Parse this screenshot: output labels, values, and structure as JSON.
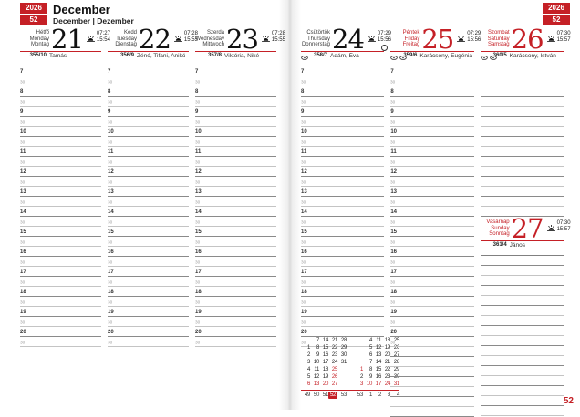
{
  "colors": {
    "red": "#c52026"
  },
  "corner_badge": {
    "year": "2026",
    "week": "52"
  },
  "month_header": {
    "title": "December",
    "subtitle": "December | Dezember"
  },
  "page_number": "52",
  "half_hour_label": "30",
  "hours": [
    "7",
    "8",
    "9",
    "10",
    "11",
    "12",
    "13",
    "14",
    "15",
    "16",
    "17",
    "18",
    "19",
    "20"
  ],
  "days": [
    {
      "name_hu": "Hétfő",
      "name_en": "Monday",
      "name_de": "Montag",
      "number": "21",
      "sunrise": "07:27",
      "sunset": "15:54",
      "ordinal": "355/10",
      "name_days": "Tamás",
      "is_red": false,
      "holiday_icons": 0,
      "full_moon": false
    },
    {
      "name_hu": "Kedd",
      "name_en": "Tuesday",
      "name_de": "Dienstag",
      "number": "22",
      "sunrise": "07:28",
      "sunset": "15:55",
      "ordinal": "356/9",
      "name_days": "Zénó, Tifani, Anikó",
      "is_red": false,
      "holiday_icons": 0,
      "full_moon": false
    },
    {
      "name_hu": "Szerda",
      "name_en": "Wednesday",
      "name_de": "Mittwoch",
      "number": "23",
      "sunrise": "07:28",
      "sunset": "15:55",
      "ordinal": "357/8",
      "name_days": "Viktória, Niké",
      "is_red": false,
      "holiday_icons": 0,
      "full_moon": false
    },
    {
      "name_hu": "Csütörtök",
      "name_en": "Thursday",
      "name_de": "Donnerstag",
      "number": "24",
      "sunrise": "07:29",
      "sunset": "15:56",
      "ordinal": "358/7",
      "name_days": "Ádám, Éva",
      "is_red": false,
      "holiday_icons": 1,
      "full_moon": true
    },
    {
      "name_hu": "Péntek",
      "name_en": "Friday",
      "name_de": "Freitag",
      "number": "25",
      "sunrise": "07:29",
      "sunset": "15:56",
      "ordinal": "359/6",
      "name_days": "Karácsony, Eugénia",
      "is_red": true,
      "holiday_icons": 2,
      "full_moon": false
    },
    {
      "name_hu": "Szombat",
      "name_en": "Saturday",
      "name_de": "Samstag",
      "number": "26",
      "sunrise": "07:30",
      "sunset": "15:57",
      "ordinal": "360/5",
      "name_days": "Karácsony, István",
      "is_red": true,
      "holiday_icons": 2,
      "full_moon": false
    },
    {
      "name_hu": "Vasárnap",
      "name_en": "Sunday",
      "name_de": "Sonntag",
      "number": "27",
      "sunrise": "07:30",
      "sunset": "15:57",
      "ordinal": "361/4",
      "name_days": "János",
      "is_red": true,
      "holiday_icons": 0,
      "full_moon": false
    }
  ],
  "mini_calendar": {
    "months": [
      {
        "rows": [
          [
            "",
            "7",
            "14",
            "21",
            "28"
          ],
          [
            "1",
            "8",
            "15",
            "22",
            "29"
          ],
          [
            "2",
            "9",
            "16",
            "23",
            "30"
          ],
          [
            "3",
            "10",
            "17",
            "24",
            "31"
          ],
          [
            "4",
            "11",
            "18",
            "25",
            ""
          ],
          [
            "5",
            "12",
            "19",
            "26",
            ""
          ],
          [
            "6",
            "13",
            "20",
            "27",
            ""
          ]
        ],
        "red_days": [
          "6",
          "13",
          "20",
          "25",
          "26",
          "27"
        ],
        "week_numbers": [
          "49",
          "50",
          "51",
          "52",
          "53"
        ]
      },
      {
        "rows": [
          [
            "",
            "4",
            "11",
            "18",
            "25"
          ],
          [
            "",
            "5",
            "12",
            "19",
            "26"
          ],
          [
            "",
            "6",
            "13",
            "20",
            "27"
          ],
          [
            "",
            "7",
            "14",
            "21",
            "28"
          ],
          [
            "1",
            "8",
            "15",
            "22",
            "29"
          ],
          [
            "2",
            "9",
            "16",
            "23",
            "30"
          ],
          [
            "3",
            "10",
            "17",
            "24",
            "31"
          ]
        ],
        "red_days": [
          "1",
          "3",
          "10",
          "17",
          "24",
          "31"
        ],
        "week_numbers": [
          "53",
          "1",
          "2",
          "3",
          "4"
        ]
      }
    ],
    "current_week": "52"
  }
}
